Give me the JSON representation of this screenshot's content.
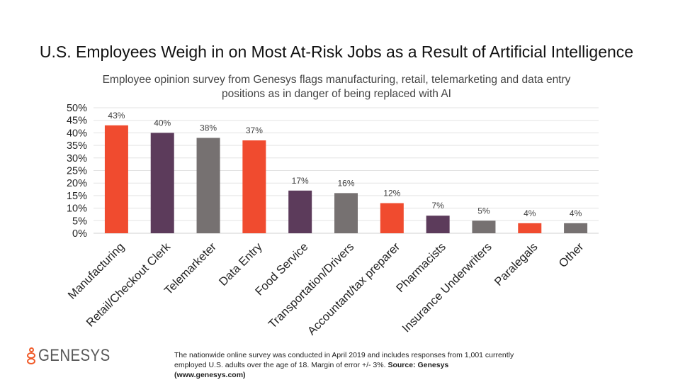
{
  "chart_data": {
    "type": "bar",
    "title": "U.S. Employees Weigh in on Most At-Risk Jobs as a Result of Artificial Intelligence",
    "subtitle": "Employee opinion survey from Genesys flags manufacturing, retail, telemarketing and data entry positions as in danger of being replaced with AI",
    "categories": [
      "Manufacturing",
      "Retail/Checkout Clerk",
      "Telemarketer",
      "Data Entry",
      "Food Service",
      "Transportation/Drivers",
      "Accountant/tax preparer",
      "Pharmacists",
      "Insurance Underwriters",
      "Paralegals",
      "Other"
    ],
    "values": [
      43,
      40,
      38,
      37,
      17,
      16,
      12,
      7,
      5,
      4,
      4
    ],
    "data_labels": [
      "43%",
      "40%",
      "38%",
      "37%",
      "17%",
      "16%",
      "12%",
      "7%",
      "5%",
      "4%",
      "4%"
    ],
    "bar_colors": [
      "#F04B2F",
      "#5C3B5B",
      "#767171",
      "#F04B2F",
      "#5C3B5B",
      "#767171",
      "#F04B2F",
      "#5C3B5B",
      "#767171",
      "#F04B2F",
      "#767171"
    ],
    "ylim": [
      0,
      50
    ],
    "yticks": [
      "0%",
      "5%",
      "10%",
      "15%",
      "20%",
      "25%",
      "30%",
      "35%",
      "40%",
      "45%",
      "50%"
    ],
    "grid": true,
    "legend": "none"
  },
  "footer": {
    "note": "The nationwide online survey was conducted in April 2019 and includes responses from 1,001 currently employed U.S. adults over the age of 18. Margin of error +/- 3%.",
    "source": "Source: Genesys (www.genesys.com)",
    "logo": "GENESYS"
  }
}
